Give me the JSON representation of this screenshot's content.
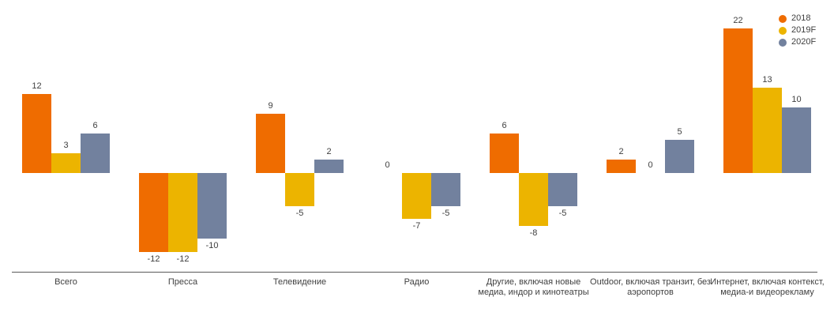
{
  "chart_data": {
    "type": "bar",
    "title": "",
    "xlabel": "",
    "ylabel": "",
    "ylim": [
      -12,
      22
    ],
    "grid": false,
    "legend_position": "top-right",
    "value_labels": true,
    "categories": [
      "Всего",
      "Пресса",
      "Телевидение",
      "Радио",
      "Другие, включая новые медиа, индор и кинотеатры",
      "Outdoor, включая транзит, без аэропортов",
      "Интернет, включая контекст, медиа-и видеорекламу"
    ],
    "series": [
      {
        "name": "2018",
        "color": "#EF6C00",
        "values": [
          12,
          -12,
          9,
          0,
          6,
          2,
          22
        ]
      },
      {
        "name": "2019F",
        "color": "#ECB400",
        "values": [
          3,
          -12,
          -5,
          -7,
          -8,
          0,
          13
        ]
      },
      {
        "name": "2020F",
        "color": "#72819E",
        "values": [
          6,
          -10,
          2,
          -5,
          -5,
          5,
          10
        ]
      }
    ]
  },
  "colors": {
    "axis_line": "#595959",
    "label_text": "#404040",
    "background": "#FFFFFF"
  }
}
